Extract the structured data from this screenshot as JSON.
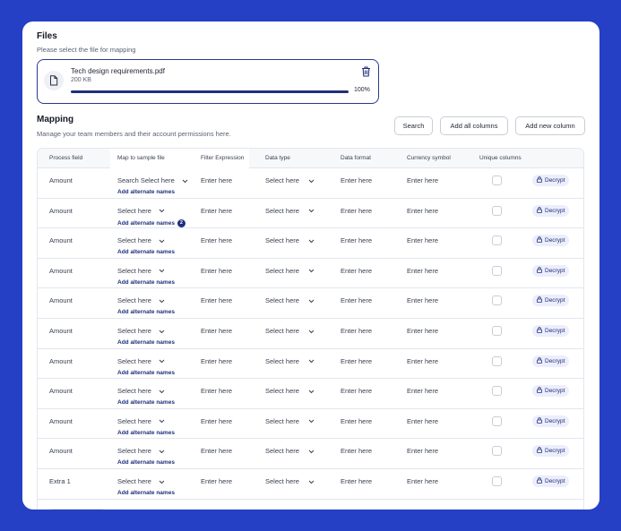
{
  "files": {
    "title": "Files",
    "subtitle": "Please select the file for mapping",
    "file": {
      "name": "Tech design requirements.pdf",
      "size": "200 KB",
      "progress_label": "100%",
      "progress": 1.0
    }
  },
  "mapping": {
    "title": "Mapping",
    "subtitle": "Manage your team members and their account permissions here.",
    "buttons": {
      "search": "Search",
      "add_all": "Add all columns",
      "add_new": "Add new column"
    },
    "headers": {
      "process_field": "Process field",
      "map_to_sample": "Map to sample file",
      "filter_expression": "Filter Expression",
      "data_type": "Data type",
      "data_format": "Data format",
      "currency_symbol": "Currency symbol",
      "unique_columns": "Unique columns"
    },
    "rows": [
      {
        "process": "Amount",
        "map": "Search Select here",
        "alt": "Add alternate names",
        "alt_count": "",
        "filter": "Enter here",
        "dtype": "Select here",
        "dformat": "Enter here",
        "currency": "Enter here",
        "decrypt": "Decrypt"
      },
      {
        "process": "Amount",
        "map": "Select here",
        "alt": "Add alternate names",
        "alt_count": "2",
        "filter": "Enter here",
        "dtype": "Select here",
        "dformat": "Enter here",
        "currency": "Enter here",
        "decrypt": "Decrypt"
      },
      {
        "process": "Amount",
        "map": "Select here",
        "alt": "Add alternate names",
        "alt_count": "",
        "filter": "Enter here",
        "dtype": "Select here",
        "dformat": "Enter here",
        "currency": "Enter here",
        "decrypt": "Decrypt"
      },
      {
        "process": "Amount",
        "map": "Select here",
        "alt": "Add alternate names",
        "alt_count": "",
        "filter": "Enter here",
        "dtype": "Select here",
        "dformat": "Enter here",
        "currency": "Enter here",
        "decrypt": "Decrypt"
      },
      {
        "process": "Amount",
        "map": "Select here",
        "alt": "Add alternate names",
        "alt_count": "",
        "filter": "Enter here",
        "dtype": "Select here",
        "dformat": "Enter here",
        "currency": "Enter here",
        "decrypt": "Decrypt"
      },
      {
        "process": "Amount",
        "map": "Select here",
        "alt": "Add alternate names",
        "alt_count": "",
        "filter": "Enter here",
        "dtype": "Select here",
        "dformat": "Enter here",
        "currency": "Enter here",
        "decrypt": "Decrypt"
      },
      {
        "process": "Amount",
        "map": "Select here",
        "alt": "Add alternate names",
        "alt_count": "",
        "filter": "Enter here",
        "dtype": "Select here",
        "dformat": "Enter here",
        "currency": "Enter here",
        "decrypt": "Decrypt"
      },
      {
        "process": "Amount",
        "map": "Select here",
        "alt": "Add alternate names",
        "alt_count": "",
        "filter": "Enter here",
        "dtype": "Select here",
        "dformat": "Enter here",
        "currency": "Enter here",
        "decrypt": "Decrypt"
      },
      {
        "process": "Amount",
        "map": "Select here",
        "alt": "Add alternate names",
        "alt_count": "",
        "filter": "Enter here",
        "dtype": "Select here",
        "dformat": "Enter here",
        "currency": "Enter here",
        "decrypt": "Decrypt"
      },
      {
        "process": "Amount",
        "map": "Select here",
        "alt": "Add alternate names",
        "alt_count": "",
        "filter": "Enter here",
        "dtype": "Select here",
        "dformat": "Enter here",
        "currency": "Enter here",
        "decrypt": "Decrypt"
      },
      {
        "process": "Extra 1",
        "map": "Select here",
        "alt": "Add alternate names",
        "alt_count": "",
        "filter": "Enter here",
        "dtype": "Select here",
        "dformat": "Enter here",
        "currency": "Enter here",
        "decrypt": "Decrypt"
      }
    ]
  },
  "colors": {
    "frame": "#2540c4",
    "accent": "#1f2f7a",
    "badge_bg": "#eceefb"
  },
  "icons": {
    "file": "file-icon",
    "trash": "trash-icon",
    "chevron": "chevron-down-icon",
    "lock": "lock-icon"
  }
}
